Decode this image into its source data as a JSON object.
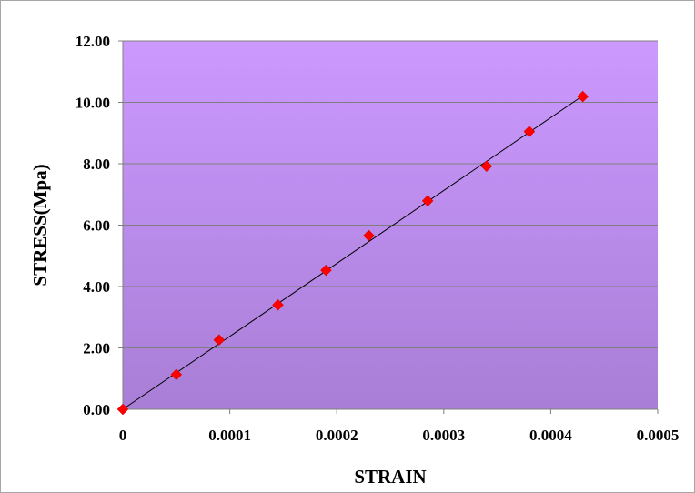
{
  "chart_data": {
    "type": "scatter",
    "title": "",
    "xlabel": "STRAIN",
    "ylabel": "STRESS(Mpa)",
    "xlim": [
      0,
      0.0005
    ],
    "ylim": [
      0,
      12
    ],
    "x_ticks": [
      "0",
      "0.0001",
      "0.0002",
      "0.0003",
      "0.0004",
      "0.0005"
    ],
    "y_ticks": [
      "0.00",
      "2.00",
      "4.00",
      "6.00",
      "8.00",
      "10.00",
      "12.00"
    ],
    "grid": "horizontal",
    "legend": "none",
    "trendline": "linear",
    "series": [
      {
        "marker": "diamond",
        "color": "#ff0000",
        "x": [
          0,
          5e-05,
          9e-05,
          0.000145,
          0.00019,
          0.00023,
          0.000285,
          0.00034,
          0.00038,
          0.00043
        ],
        "y": [
          0.0,
          1.13,
          2.26,
          3.4,
          4.53,
          5.66,
          6.79,
          7.92,
          9.05,
          10.19
        ]
      }
    ],
    "colors": {
      "plot_top": "#cc99ff",
      "plot_bottom": "#a87ed6",
      "gridline": "#7f7f7f",
      "trendline": "#000000",
      "marker": "#ff0000"
    }
  }
}
